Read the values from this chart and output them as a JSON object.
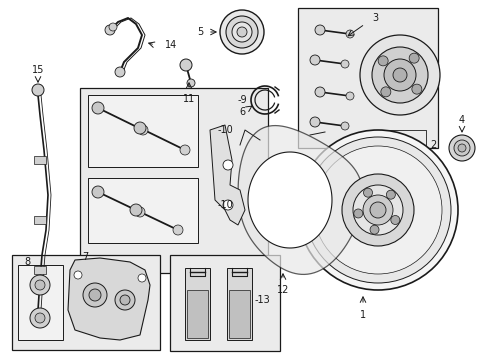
{
  "bg_color": "#ffffff",
  "box_bg": "#ebebeb",
  "line_color": "#1a1a1a",
  "fig_width": 4.89,
  "fig_height": 3.6,
  "dpi": 100
}
